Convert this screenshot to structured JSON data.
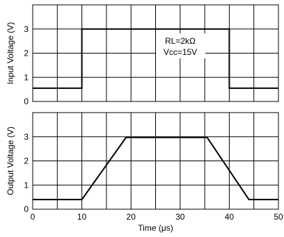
{
  "chart_data": [
    {
      "type": "line",
      "ylabel": "Input Voltage  (V)",
      "xlim": [
        0,
        50
      ],
      "ylim": [
        0,
        4
      ],
      "grid": true,
      "y_ticks": [
        "0",
        "1",
        "2",
        "3"
      ],
      "annotations": [
        "RL=2kΩ",
        "Vcc=15V"
      ],
      "series": [
        {
          "x": [
            0,
            10,
            10,
            40,
            40,
            50
          ],
          "y": [
            0.55,
            0.55,
            3.0,
            3.0,
            0.55,
            0.55
          ]
        }
      ]
    },
    {
      "type": "line",
      "ylabel": "Output Voltage  (V)",
      "xlabel": "Time   (μs)",
      "xlim": [
        0,
        50
      ],
      "ylim": [
        0,
        4
      ],
      "grid": true,
      "x_ticks": [
        "0",
        "10",
        "20",
        "30",
        "40",
        "50"
      ],
      "y_ticks": [
        "0",
        "1",
        "2",
        "3"
      ],
      "series": [
        {
          "x": [
            0,
            10,
            19,
            35.5,
            44,
            50
          ],
          "y": [
            0.4,
            0.4,
            2.97,
            2.97,
            0.4,
            0.4
          ]
        }
      ]
    }
  ]
}
